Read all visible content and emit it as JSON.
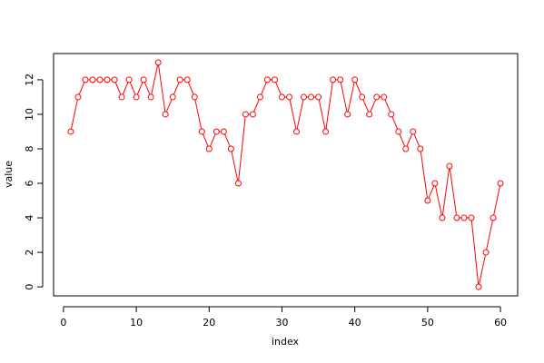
{
  "chart_data": {
    "type": "line",
    "color": "#ff0000",
    "markers": true,
    "x_label": "index",
    "y_label": "value",
    "x": [
      1,
      2,
      3,
      4,
      5,
      6,
      7,
      8,
      9,
      10,
      11,
      12,
      13,
      14,
      15,
      16,
      17,
      18,
      19,
      20,
      21,
      22,
      23,
      24,
      25,
      26,
      27,
      28,
      29,
      30,
      31,
      32,
      33,
      34,
      35,
      36,
      37,
      38,
      39,
      40,
      41,
      42,
      43,
      44,
      45,
      46,
      47,
      48,
      49,
      50,
      51,
      52,
      53,
      54,
      55,
      56,
      57,
      58,
      59,
      60
    ],
    "values": [
      9,
      11,
      12,
      12,
      12,
      12,
      12,
      11,
      12,
      11,
      12,
      11,
      13,
      10,
      11,
      12,
      12,
      11,
      9,
      8,
      9,
      9,
      8,
      6,
      10,
      10,
      11,
      12,
      12,
      11,
      11,
      9,
      11,
      11,
      11,
      9,
      12,
      12,
      10,
      12,
      11,
      10,
      11,
      11,
      10,
      9,
      8,
      9,
      8,
      5,
      6,
      4,
      7,
      4,
      4,
      4,
      0,
      2,
      4,
      6
    ],
    "xlim": [
      -1.36,
      62.36
    ],
    "ylim": [
      -0.52,
      13.52
    ],
    "xticks": [
      0,
      10,
      20,
      30,
      40,
      50,
      60
    ],
    "yticks": [
      0,
      2,
      4,
      6,
      8,
      10,
      12
    ]
  }
}
